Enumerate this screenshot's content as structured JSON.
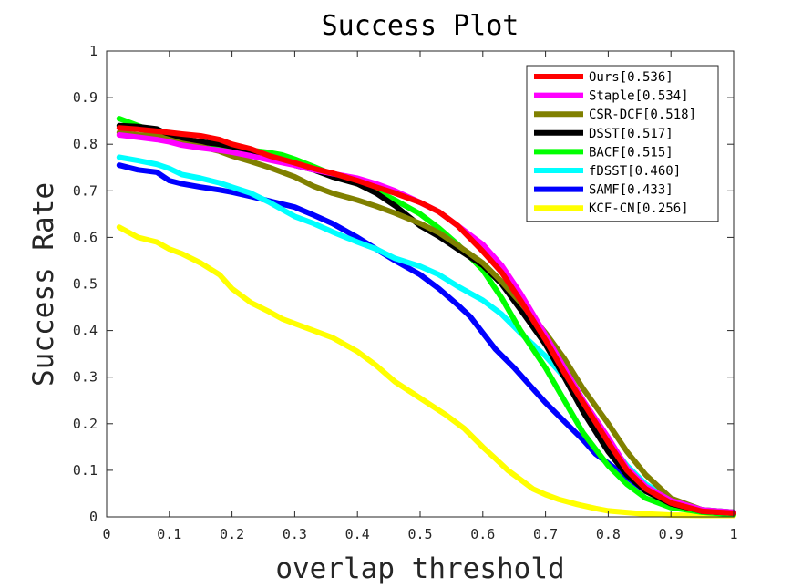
{
  "chart_data": {
    "type": "line",
    "title": "Success Plot",
    "xlabel": "overlap threshold",
    "ylabel": "Success Rate",
    "xlim": [
      0,
      1
    ],
    "ylim": [
      0,
      1
    ],
    "grid": false,
    "legend_position": "top-right",
    "x_ticks": [
      "0",
      "0.1",
      "0.2",
      "0.3",
      "0.4",
      "0.5",
      "0.6",
      "0.7",
      "0.8",
      "0.9",
      "1"
    ],
    "y_ticks": [
      "0",
      "0.1",
      "0.2",
      "0.3",
      "0.4",
      "0.5",
      "0.6",
      "0.7",
      "0.8",
      "0.9",
      "1"
    ],
    "series": [
      {
        "name": "KCF-CN[0.256]",
        "color": "#ffff00",
        "x": [
          0.02,
          0.05,
          0.08,
          0.1,
          0.12,
          0.15,
          0.18,
          0.2,
          0.23,
          0.26,
          0.28,
          0.3,
          0.33,
          0.36,
          0.38,
          0.4,
          0.43,
          0.46,
          0.5,
          0.54,
          0.57,
          0.6,
          0.62,
          0.64,
          0.66,
          0.68,
          0.7,
          0.72,
          0.75,
          0.78,
          0.8,
          0.85,
          0.9,
          0.95,
          1.0
        ],
        "y": [
          0.622,
          0.6,
          0.59,
          0.575,
          0.565,
          0.545,
          0.52,
          0.49,
          0.46,
          0.44,
          0.425,
          0.415,
          0.4,
          0.385,
          0.37,
          0.355,
          0.325,
          0.29,
          0.255,
          0.22,
          0.19,
          0.15,
          0.125,
          0.1,
          0.08,
          0.06,
          0.048,
          0.038,
          0.027,
          0.018,
          0.013,
          0.007,
          0.004,
          0.003,
          0.003
        ]
      },
      {
        "name": "SAMF[0.433]",
        "color": "#0000ff",
        "x": [
          0.02,
          0.05,
          0.08,
          0.1,
          0.12,
          0.15,
          0.18,
          0.2,
          0.23,
          0.26,
          0.3,
          0.33,
          0.36,
          0.4,
          0.43,
          0.46,
          0.5,
          0.53,
          0.56,
          0.58,
          0.6,
          0.62,
          0.65,
          0.68,
          0.7,
          0.73,
          0.76,
          0.78,
          0.8,
          0.83,
          0.86,
          0.9,
          0.95,
          1.0
        ],
        "y": [
          0.755,
          0.745,
          0.74,
          0.722,
          0.715,
          0.708,
          0.702,
          0.697,
          0.688,
          0.678,
          0.665,
          0.648,
          0.63,
          0.6,
          0.575,
          0.55,
          0.52,
          0.49,
          0.455,
          0.43,
          0.395,
          0.36,
          0.32,
          0.275,
          0.245,
          0.205,
          0.165,
          0.135,
          0.115,
          0.085,
          0.055,
          0.03,
          0.015,
          0.01
        ]
      },
      {
        "name": "fDSST[0.460]",
        "color": "#00ffff",
        "x": [
          0.02,
          0.05,
          0.08,
          0.1,
          0.12,
          0.15,
          0.18,
          0.2,
          0.23,
          0.26,
          0.28,
          0.3,
          0.33,
          0.36,
          0.4,
          0.43,
          0.46,
          0.5,
          0.53,
          0.56,
          0.6,
          0.63,
          0.66,
          0.7,
          0.73,
          0.76,
          0.8,
          0.83,
          0.86,
          0.9,
          0.95,
          1.0
        ],
        "y": [
          0.772,
          0.765,
          0.757,
          0.748,
          0.735,
          0.727,
          0.717,
          0.708,
          0.695,
          0.675,
          0.66,
          0.645,
          0.63,
          0.612,
          0.59,
          0.575,
          0.555,
          0.538,
          0.52,
          0.495,
          0.465,
          0.435,
          0.395,
          0.345,
          0.3,
          0.235,
          0.16,
          0.11,
          0.07,
          0.038,
          0.015,
          0.01
        ]
      },
      {
        "name": "BACF[0.515]",
        "color": "#00ff00",
        "x": [
          0.02,
          0.05,
          0.08,
          0.1,
          0.12,
          0.15,
          0.18,
          0.2,
          0.23,
          0.26,
          0.28,
          0.3,
          0.33,
          0.36,
          0.4,
          0.43,
          0.46,
          0.5,
          0.53,
          0.56,
          0.6,
          0.63,
          0.66,
          0.7,
          0.73,
          0.76,
          0.8,
          0.83,
          0.86,
          0.9,
          0.95,
          1.0
        ],
        "y": [
          0.855,
          0.84,
          0.825,
          0.812,
          0.805,
          0.8,
          0.797,
          0.793,
          0.787,
          0.782,
          0.777,
          0.768,
          0.752,
          0.735,
          0.715,
          0.7,
          0.68,
          0.65,
          0.62,
          0.585,
          0.53,
          0.47,
          0.4,
          0.32,
          0.25,
          0.18,
          0.11,
          0.07,
          0.04,
          0.02,
          0.01,
          0.005
        ]
      },
      {
        "name": "DSST[0.517]",
        "color": "#000000",
        "x": [
          0.02,
          0.05,
          0.08,
          0.1,
          0.12,
          0.15,
          0.18,
          0.2,
          0.23,
          0.26,
          0.3,
          0.33,
          0.36,
          0.4,
          0.43,
          0.46,
          0.5,
          0.53,
          0.56,
          0.6,
          0.63,
          0.66,
          0.7,
          0.73,
          0.76,
          0.8,
          0.83,
          0.86,
          0.9,
          0.95,
          1.0
        ],
        "y": [
          0.84,
          0.838,
          0.833,
          0.82,
          0.812,
          0.805,
          0.8,
          0.795,
          0.785,
          0.772,
          0.755,
          0.745,
          0.73,
          0.715,
          0.695,
          0.668,
          0.625,
          0.602,
          0.575,
          0.54,
          0.5,
          0.445,
          0.37,
          0.3,
          0.225,
          0.14,
          0.09,
          0.055,
          0.028,
          0.012,
          0.008
        ]
      },
      {
        "name": "CSR-DCF[0.518]",
        "color": "#808000",
        "x": [
          0.02,
          0.05,
          0.08,
          0.1,
          0.12,
          0.15,
          0.18,
          0.2,
          0.23,
          0.26,
          0.3,
          0.33,
          0.36,
          0.4,
          0.43,
          0.46,
          0.5,
          0.53,
          0.56,
          0.6,
          0.63,
          0.66,
          0.7,
          0.73,
          0.76,
          0.8,
          0.83,
          0.86,
          0.9,
          0.95,
          1.0
        ],
        "y": [
          0.825,
          0.82,
          0.818,
          0.81,
          0.802,
          0.795,
          0.785,
          0.775,
          0.763,
          0.75,
          0.73,
          0.71,
          0.695,
          0.68,
          0.667,
          0.652,
          0.63,
          0.61,
          0.583,
          0.545,
          0.505,
          0.46,
          0.395,
          0.34,
          0.275,
          0.2,
          0.14,
          0.09,
          0.04,
          0.015,
          0.01
        ]
      },
      {
        "name": "Staple[0.534]",
        "color": "#ff00ff",
        "x": [
          0.02,
          0.05,
          0.08,
          0.1,
          0.12,
          0.15,
          0.18,
          0.2,
          0.23,
          0.26,
          0.3,
          0.33,
          0.36,
          0.4,
          0.43,
          0.46,
          0.5,
          0.53,
          0.56,
          0.6,
          0.63,
          0.66,
          0.7,
          0.73,
          0.76,
          0.8,
          0.83,
          0.86,
          0.9,
          0.95,
          1.0
        ],
        "y": [
          0.82,
          0.815,
          0.81,
          0.805,
          0.798,
          0.792,
          0.787,
          0.783,
          0.775,
          0.766,
          0.755,
          0.745,
          0.737,
          0.727,
          0.715,
          0.7,
          0.675,
          0.655,
          0.625,
          0.585,
          0.54,
          0.48,
          0.39,
          0.32,
          0.25,
          0.17,
          0.105,
          0.065,
          0.035,
          0.015,
          0.01
        ]
      },
      {
        "name": "Ours[0.536]",
        "color": "#ff0000",
        "x": [
          0.02,
          0.05,
          0.08,
          0.1,
          0.12,
          0.15,
          0.18,
          0.2,
          0.23,
          0.26,
          0.3,
          0.33,
          0.36,
          0.4,
          0.43,
          0.46,
          0.5,
          0.53,
          0.56,
          0.6,
          0.63,
          0.66,
          0.7,
          0.73,
          0.76,
          0.8,
          0.83,
          0.86,
          0.9,
          0.95,
          1.0
        ],
        "y": [
          0.835,
          0.832,
          0.828,
          0.825,
          0.822,
          0.818,
          0.81,
          0.8,
          0.79,
          0.775,
          0.76,
          0.748,
          0.738,
          0.722,
          0.708,
          0.695,
          0.675,
          0.655,
          0.625,
          0.57,
          0.525,
          0.465,
          0.38,
          0.31,
          0.245,
          0.16,
          0.1,
          0.06,
          0.03,
          0.012,
          0.008
        ]
      }
    ],
    "legend_order": [
      "Ours[0.536]",
      "Staple[0.534]",
      "CSR-DCF[0.518]",
      "DSST[0.517]",
      "BACF[0.515]",
      "fDSST[0.460]",
      "SAMF[0.433]",
      "KCF-CN[0.256]"
    ]
  }
}
